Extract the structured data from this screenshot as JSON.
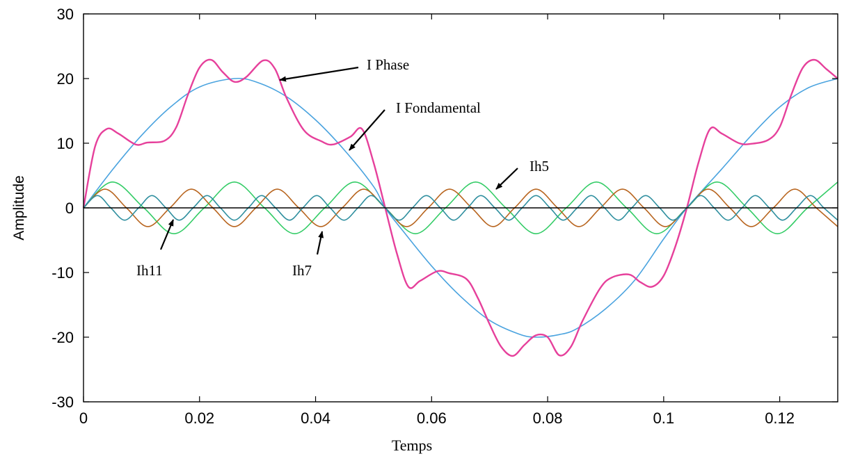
{
  "chart_data": {
    "type": "line",
    "title": "",
    "xlabel": "Temps",
    "ylabel": "Amplitude",
    "xlim": [
      0,
      0.13
    ],
    "ylim": [
      -30,
      30
    ],
    "x_ticks": [
      0,
      0.02,
      0.04,
      0.06,
      0.08,
      0.1,
      0.12
    ],
    "x_tick_labels": [
      "0",
      "0.02",
      "0.04",
      "0.06",
      "0.08",
      "0.1",
      "0.12"
    ],
    "y_ticks": [
      -30,
      -20,
      -10,
      0,
      10,
      20,
      30
    ],
    "y_tick_labels": [
      "-30",
      "-20",
      "-10",
      "0",
      "10",
      "20",
      "30"
    ],
    "grid": false,
    "zero_line": true,
    "series": [
      {
        "name": "I Fondamental",
        "color": "#4aa3df",
        "x": [
          0,
          0.005,
          0.01,
          0.015,
          0.02,
          0.026,
          0.03,
          0.035,
          0.04,
          0.045,
          0.05,
          0.052,
          0.055,
          0.06,
          0.065,
          0.07,
          0.075,
          0.078,
          0.082,
          0.085,
          0.09,
          0.095,
          0.1,
          0.104,
          0.11,
          0.115,
          0.12,
          0.125,
          0.13
        ],
        "values": [
          0,
          5.9,
          11.2,
          15.6,
          18.7,
          20.0,
          19.4,
          17.2,
          13.6,
          8.9,
          3.3,
          0,
          -3.5,
          -9.0,
          -13.7,
          -17.4,
          -19.5,
          -20.0,
          -19.6,
          -18.7,
          -15.6,
          -11.2,
          -4.8,
          0,
          6.0,
          11.1,
          15.6,
          18.6,
          20.0
        ]
      },
      {
        "name": "I Phase",
        "color": "#e6409b",
        "x": [
          0,
          0.002,
          0.004,
          0.006,
          0.009,
          0.011,
          0.014,
          0.016,
          0.018,
          0.02,
          0.022,
          0.024,
          0.026,
          0.028,
          0.031,
          0.033,
          0.035,
          0.038,
          0.041,
          0.043,
          0.046,
          0.048,
          0.05,
          0.052,
          0.054,
          0.056,
          0.058,
          0.061,
          0.063,
          0.066,
          0.068,
          0.07,
          0.072,
          0.074,
          0.076,
          0.078,
          0.08,
          0.082,
          0.084,
          0.086,
          0.089,
          0.091,
          0.094,
          0.096,
          0.098,
          0.1,
          0.102,
          0.104,
          0.106,
          0.108,
          0.11,
          0.113,
          0.115,
          0.118,
          0.12,
          0.122,
          0.124,
          0.126,
          0.128,
          0.13
        ],
        "values": [
          0,
          9.5,
          12.2,
          11.5,
          9.8,
          10.1,
          10.4,
          12.5,
          17.5,
          21.7,
          22.9,
          21.0,
          19.5,
          20.2,
          22.8,
          21.5,
          17.0,
          12.0,
          10.3,
          9.8,
          11.0,
          12.2,
          7.0,
          0,
          -7.0,
          -12.2,
          -11.3,
          -9.8,
          -10.1,
          -11.0,
          -14.0,
          -18.0,
          -21.5,
          -22.9,
          -21.2,
          -19.7,
          -20.0,
          -22.8,
          -21.5,
          -17.5,
          -12.5,
          -10.8,
          -10.3,
          -11.5,
          -12.2,
          -10.5,
          -6.0,
          0,
          7.0,
          12.2,
          11.5,
          10.0,
          9.9,
          10.5,
          12.5,
          17.5,
          21.7,
          22.9,
          21.5,
          20.0
        ]
      },
      {
        "name": "Ih5",
        "color": "#33cc66",
        "x": [
          0,
          0.005,
          0.0104,
          0.0156,
          0.0208,
          0.026,
          0.0312,
          0.0364,
          0.0416,
          0.0468,
          0.052,
          0.0572,
          0.0624,
          0.0676,
          0.0728,
          0.078,
          0.0832,
          0.0884,
          0.0936,
          0.0988,
          0.104,
          0.1092,
          0.1144,
          0.1196,
          0.1248,
          0.13
        ],
        "values": [
          0,
          4.0,
          0,
          -4.0,
          0,
          4.0,
          0,
          -4.0,
          0,
          4.0,
          0,
          -4.0,
          0,
          4.0,
          0,
          -4.0,
          0,
          4.0,
          0,
          -4.0,
          0,
          4.0,
          0,
          -4.0,
          0,
          4.0
        ]
      },
      {
        "name": "Ih7",
        "color": "#b8651f",
        "x": [
          0,
          0.0037,
          0.0074,
          0.0111,
          0.0149,
          0.0186,
          0.0223,
          0.026,
          0.0297,
          0.0334,
          0.0371,
          0.0409,
          0.0446,
          0.0483,
          0.052,
          0.0557,
          0.0594,
          0.0631,
          0.0669,
          0.0706,
          0.0743,
          0.078,
          0.0817,
          0.0854,
          0.0891,
          0.0929,
          0.0966,
          0.1003,
          0.104,
          0.1077,
          0.1114,
          0.1151,
          0.1189,
          0.1226,
          0.1263,
          0.13
        ],
        "values": [
          0,
          2.9,
          0,
          -2.9,
          0,
          2.9,
          0,
          -2.9,
          0,
          2.9,
          0,
          -2.9,
          0,
          2.9,
          0,
          -2.9,
          0,
          2.9,
          0,
          -2.9,
          0,
          2.9,
          0,
          -2.9,
          0,
          2.9,
          0,
          -2.9,
          0,
          2.9,
          0,
          -2.9,
          0,
          2.9,
          0,
          -2.9
        ]
      },
      {
        "name": "Ih11",
        "color": "#2f8f9f",
        "x": [
          0,
          0.0024,
          0.0047,
          0.0071,
          0.0095,
          0.0118,
          0.0142,
          0.0165,
          0.0189,
          0.0213,
          0.0236,
          0.026,
          0.0284,
          0.0307,
          0.0331,
          0.0355,
          0.0378,
          0.0402,
          0.0425,
          0.0449,
          0.0473,
          0.0496,
          0.052,
          0.0544,
          0.0567,
          0.0591,
          0.0615,
          0.0638,
          0.0662,
          0.0685,
          0.0709,
          0.0733,
          0.0756,
          0.078,
          0.0804,
          0.0827,
          0.0851,
          0.0875,
          0.0898,
          0.0922,
          0.0945,
          0.0969,
          0.0993,
          0.1016,
          0.104,
          0.1064,
          0.1087,
          0.1111,
          0.1135,
          0.1158,
          0.1182,
          0.1205,
          0.1229,
          0.1253,
          0.1276,
          0.13
        ],
        "values": [
          0,
          1.9,
          0,
          -1.9,
          0,
          1.9,
          0,
          -1.9,
          0,
          1.9,
          0,
          -1.9,
          0,
          1.9,
          0,
          -1.9,
          0,
          1.9,
          0,
          -1.9,
          0,
          1.9,
          0,
          -1.9,
          0,
          1.9,
          0,
          -1.9,
          0,
          1.9,
          0,
          -1.9,
          0,
          1.9,
          0,
          -1.9,
          0,
          1.9,
          0,
          -1.9,
          0,
          1.9,
          0,
          -1.9,
          0,
          1.9,
          0,
          -1.9,
          0,
          1.9,
          0,
          -1.9,
          0,
          1.9,
          0,
          -1.9
        ]
      }
    ],
    "annotations": [
      {
        "text": "I Phase",
        "arrow_to": [
          0.034,
          20.0
        ]
      },
      {
        "text": "I Fondamental",
        "arrow_to": [
          0.045,
          8.8
        ]
      },
      {
        "text": "Ih5",
        "arrow_to": [
          0.0695,
          2.4
        ]
      },
      {
        "text": "Ih7",
        "arrow_to": [
          0.041,
          -4.0
        ]
      },
      {
        "text": "Ih11",
        "arrow_to": [
          0.0155,
          -3.3
        ]
      }
    ]
  }
}
